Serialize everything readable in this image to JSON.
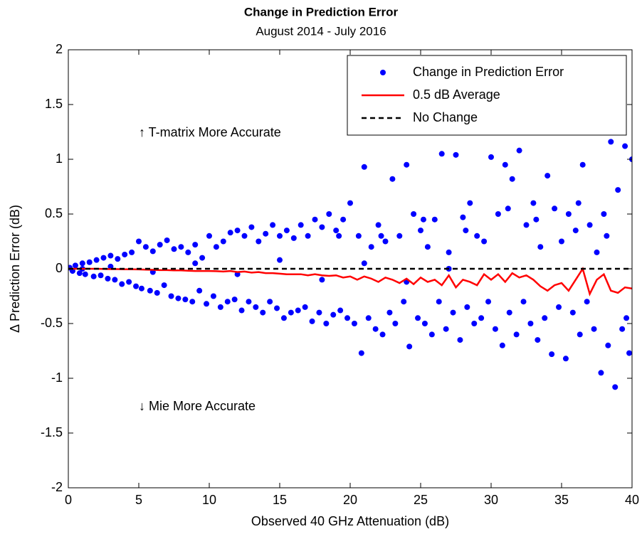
{
  "chart_data": {
    "type": "scatter",
    "title": "Change in Prediction Error",
    "subtitle": "August 2014 - July 2016",
    "xlabel": "Observed 40 GHz Attenuation (dB)",
    "ylabel": "Δ Prediction Error (dB)",
    "annotations": [
      "↑  T-matrix More Accurate",
      "↓  Mie More Accurate"
    ],
    "xlim": [
      0,
      40
    ],
    "ylim": [
      -2,
      2
    ],
    "xticks": [
      0,
      5,
      10,
      15,
      20,
      25,
      30,
      35,
      40
    ],
    "yticks": [
      -2,
      -1.5,
      -1,
      -0.5,
      0,
      0.5,
      1,
      1.5,
      2
    ],
    "grid": false,
    "legend": "upper right",
    "series": [
      {
        "name": "Change in Prediction Error",
        "color": "#0000ff",
        "style": "markers",
        "x": [
          0.1,
          0.3,
          0.5,
          0.8,
          1.0,
          1.2,
          1.5,
          1.8,
          2.0,
          2.3,
          2.5,
          2.8,
          3.0,
          3.3,
          3.5,
          3.8,
          4.0,
          4.3,
          4.5,
          4.8,
          5.0,
          5.2,
          5.5,
          5.8,
          6.0,
          6.3,
          6.5,
          6.8,
          7.0,
          7.3,
          7.5,
          7.8,
          8.0,
          8.3,
          8.5,
          8.8,
          9.0,
          9.3,
          9.5,
          9.8,
          10.0,
          10.3,
          10.5,
          10.8,
          11.0,
          11.3,
          11.5,
          11.8,
          12.0,
          12.3,
          12.5,
          12.8,
          13.0,
          13.3,
          13.5,
          13.8,
          14.0,
          14.3,
          14.5,
          14.8,
          15,
          15.3,
          15.5,
          15.8,
          16,
          16.3,
          16.5,
          16.8,
          17,
          17.3,
          17.5,
          17.8,
          18,
          18.3,
          18.5,
          18.8,
          19,
          19.3,
          19.5,
          19.8,
          20,
          20.3,
          20.6,
          20.8,
          21,
          21.3,
          21.5,
          21.8,
          22,
          22.3,
          22.5,
          22.8,
          23,
          23.2,
          23.5,
          23.8,
          24,
          24.2,
          24.5,
          24.8,
          25,
          25.3,
          25.5,
          25.8,
          26,
          26.3,
          26.5,
          26.8,
          27,
          27.3,
          27.5,
          27.8,
          28,
          28.3,
          28.5,
          28.8,
          29,
          29.3,
          29.5,
          29.8,
          30,
          30.3,
          30.5,
          30.8,
          31,
          31.3,
          31.5,
          31.8,
          32,
          32.3,
          32.5,
          32.8,
          33,
          33.3,
          33.5,
          33.8,
          34,
          34.3,
          34.5,
          34.8,
          35,
          35.3,
          35.5,
          35.8,
          36,
          36.3,
          36.5,
          36.8,
          37,
          37.3,
          37.5,
          37.8,
          38,
          38.3,
          38.5,
          38.8,
          39,
          39.3,
          39.5,
          39.8,
          40,
          39.6,
          38.2,
          36.2,
          33.2,
          31.2,
          28.2,
          25.2,
          22.2,
          19.2,
          1,
          3,
          6,
          9,
          12,
          15,
          18,
          21,
          24,
          27
        ],
        "values": [
          0.01,
          -0.02,
          0.03,
          -0.04,
          0.05,
          -0.05,
          0.06,
          -0.07,
          0.08,
          -0.06,
          0.1,
          -0.09,
          0.12,
          -0.1,
          0.09,
          -0.14,
          0.13,
          -0.12,
          0.15,
          -0.16,
          0.25,
          -0.18,
          0.2,
          -0.2,
          0.16,
          -0.22,
          0.22,
          -0.15,
          0.26,
          -0.25,
          0.18,
          -0.27,
          0.2,
          -0.28,
          0.15,
          -0.3,
          0.22,
          -0.2,
          0.1,
          -0.32,
          0.3,
          -0.25,
          0.2,
          -0.35,
          0.25,
          -0.3,
          0.33,
          -0.28,
          0.35,
          -0.38,
          0.3,
          -0.3,
          0.38,
          -0.35,
          0.25,
          -0.4,
          0.32,
          -0.3,
          0.4,
          -0.36,
          0.3,
          -0.45,
          0.35,
          -0.4,
          0.28,
          -0.38,
          0.4,
          -0.35,
          0.3,
          -0.48,
          0.45,
          -0.4,
          0.38,
          -0.5,
          0.5,
          -0.42,
          0.35,
          -0.38,
          0.45,
          -0.45,
          0.6,
          -0.5,
          0.3,
          -0.77,
          0.93,
          -0.45,
          0.2,
          -0.55,
          0.4,
          -0.6,
          0.25,
          -0.4,
          0.82,
          -0.5,
          0.3,
          -0.3,
          0.95,
          -0.71,
          0.5,
          -0.45,
          0.35,
          -0.5,
          0.2,
          -0.6,
          0.45,
          -0.3,
          1.05,
          -0.55,
          0.15,
          -0.4,
          1.04,
          -0.65,
          0.47,
          -0.35,
          0.6,
          -0.5,
          0.3,
          -0.45,
          0.25,
          -0.3,
          1.02,
          -0.55,
          0.5,
          -0.7,
          0.95,
          -0.4,
          0.82,
          -0.6,
          1.08,
          -0.3,
          0.4,
          -0.5,
          0.6,
          -0.65,
          0.2,
          -0.45,
          0.85,
          -0.78,
          0.55,
          -0.35,
          0.25,
          -0.82,
          0.5,
          -0.4,
          0.35,
          -0.6,
          0.95,
          -0.3,
          0.4,
          -0.55,
          0.15,
          -0.95,
          0.5,
          -0.7,
          1.16,
          -1.08,
          0.72,
          -0.55,
          1.12,
          -0.77,
          1.0,
          -0.45,
          0.3,
          0.6,
          0.45,
          0.55,
          0.35,
          0.45,
          0.3,
          0.3,
          0,
          0.02,
          -0.03,
          0.05,
          -0.05,
          0.08,
          -0.1,
          0.05,
          -0.12,
          0.0
        ]
      },
      {
        "name": "0.5 dB Average",
        "color": "#ff0000",
        "style": "solid",
        "x": [
          0,
          0.5,
          1,
          1.5,
          2,
          2.5,
          3,
          3.5,
          4,
          4.5,
          5,
          5.5,
          6,
          6.5,
          7,
          7.5,
          8,
          8.5,
          9,
          9.5,
          10,
          10.5,
          11,
          11.5,
          12,
          12.5,
          13,
          13.5,
          14,
          14.5,
          15,
          15.5,
          16,
          16.5,
          17,
          17.5,
          18,
          18.5,
          19,
          19.5,
          20,
          20.5,
          21,
          21.5,
          22,
          22.5,
          23,
          23.5,
          24,
          24.5,
          25,
          25.5,
          26,
          26.5,
          27,
          27.5,
          28,
          28.5,
          29,
          29.5,
          30,
          30.5,
          31,
          31.5,
          32,
          32.5,
          33,
          33.5,
          34,
          34.5,
          35,
          35.5,
          36,
          36.5,
          37,
          37.5,
          38,
          38.5,
          39,
          39.5,
          40
        ],
        "values": [
          0,
          0,
          0,
          0,
          0,
          -0.002,
          -0.003,
          -0.003,
          -0.005,
          -0.005,
          -0.006,
          -0.008,
          -0.01,
          -0.012,
          -0.012,
          -0.015,
          -0.015,
          -0.018,
          -0.02,
          -0.02,
          -0.02,
          -0.022,
          -0.025,
          -0.02,
          -0.03,
          -0.025,
          -0.035,
          -0.03,
          -0.04,
          -0.04,
          -0.045,
          -0.05,
          -0.05,
          -0.05,
          -0.06,
          -0.05,
          -0.06,
          -0.065,
          -0.06,
          -0.08,
          -0.07,
          -0.1,
          -0.07,
          -0.09,
          -0.12,
          -0.08,
          -0.1,
          -0.13,
          -0.09,
          -0.14,
          -0.08,
          -0.12,
          -0.1,
          -0.15,
          -0.06,
          -0.17,
          -0.1,
          -0.12,
          -0.15,
          -0.05,
          -0.1,
          -0.05,
          -0.12,
          -0.04,
          -0.08,
          -0.06,
          -0.1,
          -0.16,
          -0.2,
          -0.15,
          -0.13,
          -0.2,
          -0.1,
          0,
          -0.23,
          -0.1,
          -0.05,
          -0.2,
          -0.22,
          -0.17,
          -0.18
        ]
      },
      {
        "name": "No Change",
        "color": "#000000",
        "style": "dashed",
        "x": [
          0,
          40
        ],
        "values": [
          0,
          0
        ]
      }
    ]
  }
}
